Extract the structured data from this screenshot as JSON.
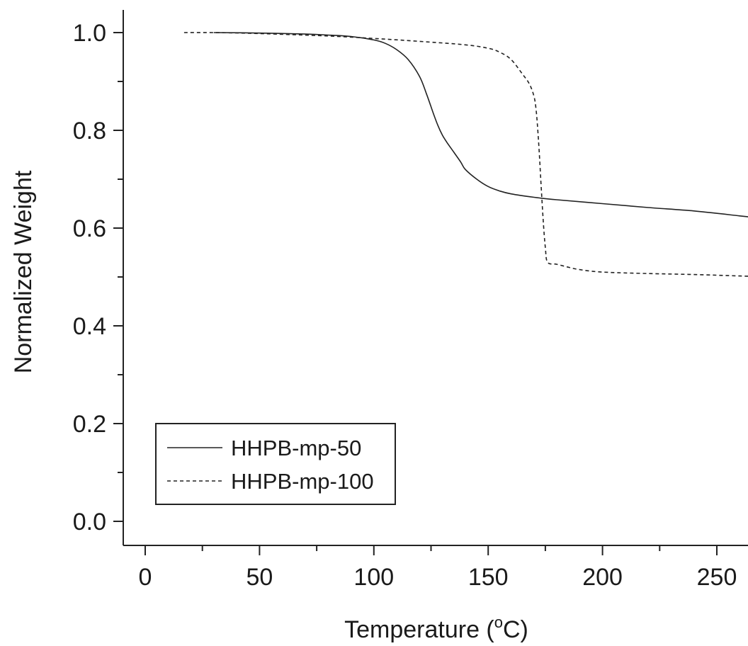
{
  "chart_data": {
    "type": "line",
    "title": "",
    "xlabel": "Temperature (",
    "xlabel_unit_sup": "o",
    "xlabel_unit": "C)",
    "ylabel": "Normalized Weight",
    "xlim": [
      -10,
      275
    ],
    "ylim": [
      -0.01,
      1.05
    ],
    "x_ticks": [
      0,
      50,
      100,
      150,
      200,
      250
    ],
    "x_tick_labels": [
      "0",
      "50",
      "100",
      "150",
      "200",
      "250"
    ],
    "y_ticks": [
      0.0,
      0.2,
      0.4,
      0.6,
      0.8,
      1.0
    ],
    "y_tick_labels": [
      "0.0",
      "0.2",
      "0.4",
      "0.6",
      "0.8",
      "1.0"
    ],
    "grid": false,
    "legend_position": "bottom-left",
    "series": [
      {
        "name": "HHPB-mp-50",
        "line_style": "solid",
        "color": "#222222",
        "x": [
          30,
          50,
          70,
          80,
          90,
          100,
          105,
          110,
          115,
          120,
          123,
          126,
          128,
          130,
          132,
          135,
          138,
          140,
          145,
          150,
          155,
          160,
          170,
          180,
          200,
          220,
          240,
          260,
          275
        ],
        "y": [
          1.0,
          0.999,
          0.997,
          0.995,
          0.992,
          0.985,
          0.978,
          0.965,
          0.945,
          0.91,
          0.875,
          0.835,
          0.81,
          0.79,
          0.775,
          0.755,
          0.735,
          0.72,
          0.7,
          0.685,
          0.676,
          0.67,
          0.663,
          0.658,
          0.65,
          0.642,
          0.635,
          0.625,
          0.617
        ]
      },
      {
        "name": "HHPB-mp-100",
        "line_style": "dashed",
        "color": "#222222",
        "x": [
          17,
          30,
          50,
          80,
          100,
          120,
          140,
          150,
          155,
          160,
          165,
          168,
          170,
          171,
          172,
          173,
          174,
          175,
          176,
          180,
          185,
          190,
          200,
          220,
          240,
          260,
          275
        ],
        "y": [
          1.0,
          1.0,
          0.998,
          0.993,
          0.988,
          0.982,
          0.975,
          0.968,
          0.96,
          0.945,
          0.915,
          0.895,
          0.87,
          0.84,
          0.78,
          0.7,
          0.62,
          0.56,
          0.53,
          0.526,
          0.52,
          0.515,
          0.51,
          0.507,
          0.505,
          0.502,
          0.5
        ]
      }
    ]
  }
}
